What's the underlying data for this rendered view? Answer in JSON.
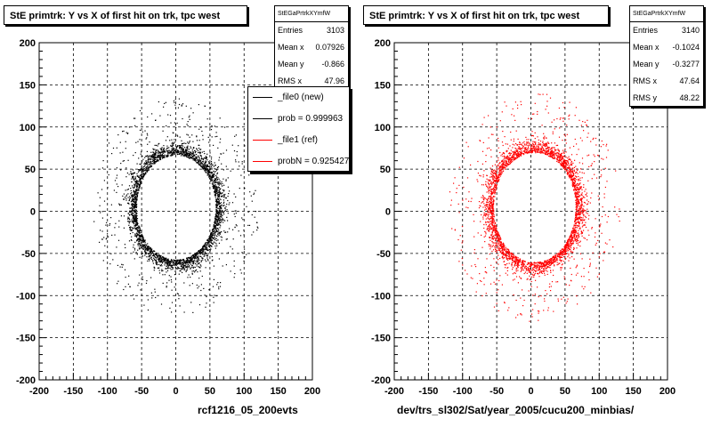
{
  "chart_data": [
    {
      "type": "scatter",
      "title": "StE primtrk: Y vs X of first hit on trk, tpc west",
      "xlabel": "rcf1216_05_200evts",
      "ylabel": "",
      "xlim": [
        -200,
        200
      ],
      "ylim": [
        -200,
        200
      ],
      "xticks": [
        "-200",
        "-150",
        "-100",
        "-50",
        "0",
        "50",
        "100",
        "150",
        "200"
      ],
      "yticks": [
        "200",
        "150",
        "100",
        "50",
        "0",
        "-50",
        "-100",
        "-150",
        "-200"
      ],
      "grid": true,
      "marker_color": "#000000",
      "stats": {
        "name": "StEGaPrtrkXYmfW",
        "entries": {
          "label": "Entries",
          "value": "3103"
        },
        "mean_x": {
          "label": "Mean x",
          "value": "0.07926"
        },
        "mean_y": {
          "label": "Mean y",
          "value": "-0.866"
        },
        "rms_x": {
          "label": "RMS x",
          "value": "47.96"
        }
      },
      "legend": {
        "placement": "top-right",
        "entries": [
          {
            "label": "_file0 (new)",
            "color": "#000000"
          },
          {
            "label": "prob = 0.999963",
            "color": "#000000"
          },
          {
            "label": "_file1 (ref)",
            "color": "#ff0000"
          },
          {
            "label": "probN = 0.925427",
            "color": "#ff0000"
          }
        ]
      },
      "ring": {
        "cx": 0,
        "cy": 5,
        "rx": 58,
        "ry": 62,
        "count": 3103,
        "seed": 17
      }
    },
    {
      "type": "scatter",
      "title": "StE primtrk: Y vs X of first hit on trk, tpc west",
      "xlabel": "dev/trs_sl302/Sat/year_2005/cucu200_minbias/",
      "ylabel": "",
      "xlim": [
        -200,
        200
      ],
      "ylim": [
        -200,
        200
      ],
      "xticks": [
        "-200",
        "-150",
        "-100",
        "-50",
        "0",
        "50",
        "100",
        "150",
        "200"
      ],
      "yticks": [
        "200",
        "150",
        "100",
        "50",
        "0",
        "-50",
        "-100",
        "-150",
        "-200"
      ],
      "grid": true,
      "marker_color": "#ff0000",
      "stats": {
        "name": "StEGaPrtrkXYmfW",
        "entries": {
          "label": "Entries",
          "value": "3140"
        },
        "mean_x": {
          "label": "Mean x",
          "value": "-0.1024"
        },
        "mean_y": {
          "label": "Mean y",
          "value": "-0.3277"
        },
        "rms_x": {
          "label": "RMS x",
          "value": "47.64"
        },
        "rms_y": {
          "label": "RMS y",
          "value": "48.22"
        }
      },
      "ring": {
        "cx": 5,
        "cy": 5,
        "rx": 60,
        "ry": 65,
        "count": 3140,
        "seed": 29
      }
    }
  ]
}
